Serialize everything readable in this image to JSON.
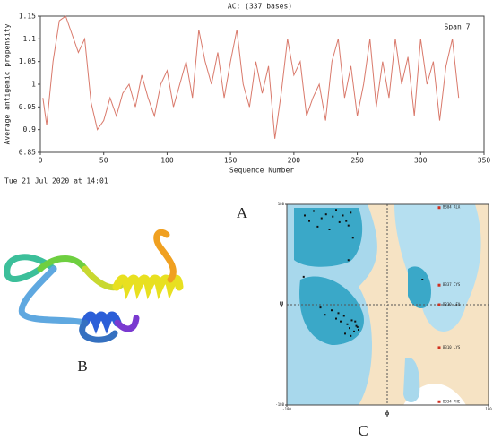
{
  "chart_data": [
    {
      "type": "line",
      "title": "AC:  (337 bases)",
      "xlabel": "Sequence Number",
      "ylabel": "Average antigenic propensity",
      "annotation": "Span 7",
      "date": "Tue 21 Jul 2020 at 14:01",
      "x": [
        2,
        5,
        10,
        15,
        20,
        25,
        30,
        35,
        40,
        45,
        50,
        55,
        60,
        65,
        70,
        75,
        80,
        85,
        90,
        95,
        100,
        105,
        110,
        115,
        120,
        125,
        130,
        135,
        140,
        145,
        150,
        155,
        160,
        165,
        170,
        175,
        180,
        185,
        190,
        195,
        200,
        205,
        210,
        215,
        220,
        225,
        230,
        235,
        240,
        245,
        250,
        255,
        260,
        265,
        270,
        275,
        280,
        285,
        290,
        295,
        300,
        305,
        310,
        315,
        320,
        325,
        330
      ],
      "values": [
        0.97,
        0.91,
        1.05,
        1.14,
        1.15,
        1.11,
        1.07,
        1.1,
        0.96,
        0.9,
        0.92,
        0.97,
        0.93,
        0.98,
        1.0,
        0.95,
        1.02,
        0.97,
        0.93,
        1.0,
        1.03,
        0.95,
        1.0,
        1.05,
        0.97,
        1.12,
        1.05,
        1.0,
        1.07,
        0.97,
        1.05,
        1.12,
        1.0,
        0.95,
        1.05,
        0.98,
        1.04,
        0.88,
        0.98,
        1.1,
        1.02,
        1.05,
        0.93,
        0.97,
        1.0,
        0.92,
        1.05,
        1.1,
        0.97,
        1.04,
        0.93,
        1.0,
        1.1,
        0.95,
        1.05,
        0.97,
        1.1,
        1.0,
        1.06,
        0.93,
        1.1,
        1.0,
        1.05,
        0.92,
        1.04,
        1.1,
        0.97
      ],
      "color": "#d9796b",
      "xlim": [
        0,
        350
      ],
      "xticks": [
        0,
        50,
        100,
        150,
        200,
        250,
        300,
        350
      ],
      "ylim": [
        0.85,
        1.15
      ],
      "yticks": [
        0.85,
        0.9,
        0.95,
        1,
        1.05,
        1.1,
        1.15
      ]
    },
    {
      "type": "scatter",
      "xlabel": "Φ",
      "ylabel": "Ψ",
      "color": "#111111",
      "x": [
        -148,
        -140,
        -132,
        -125,
        -118,
        -110,
        -104,
        -98,
        -92,
        -86,
        -80,
        -74,
        -70,
        -66,
        -62,
        -120,
        -112,
        -100,
        -92,
        -84,
        -78,
        -72,
        -68,
        -64,
        -60,
        -56,
        -52,
        -88,
        -76,
        -66,
        -58,
        -54,
        -150,
        -70,
        62
      ],
      "values": [
        160,
        150,
        168,
        140,
        155,
        162,
        135,
        158,
        170,
        148,
        160,
        150,
        142,
        165,
        120,
        -5,
        -18,
        -10,
        -25,
        -30,
        -20,
        -35,
        -42,
        -28,
        -48,
        -38,
        -45,
        -15,
        -52,
        -56,
        -30,
        -40,
        50,
        80,
        45
      ],
      "annotations": [
        {
          "text": "B304 ALA",
          "x": 92,
          "y": 174
        },
        {
          "text": "B337 CYS",
          "x": 92,
          "y": 35
        },
        {
          "text": "B330 LEU",
          "x": 92,
          "y": 0
        },
        {
          "text": "B310 LYS",
          "x": 92,
          "y": -77
        },
        {
          "text": "B334 PHE",
          "x": 92,
          "y": -174
        }
      ],
      "annotation_color": "#d03020",
      "xlim": [
        -180,
        180
      ],
      "xticks": [
        -180,
        180
      ],
      "ylim": [
        -180,
        180
      ],
      "yticks": [
        -180,
        180
      ]
    }
  ],
  "panel_labels": [
    "A",
    "B",
    "C"
  ]
}
